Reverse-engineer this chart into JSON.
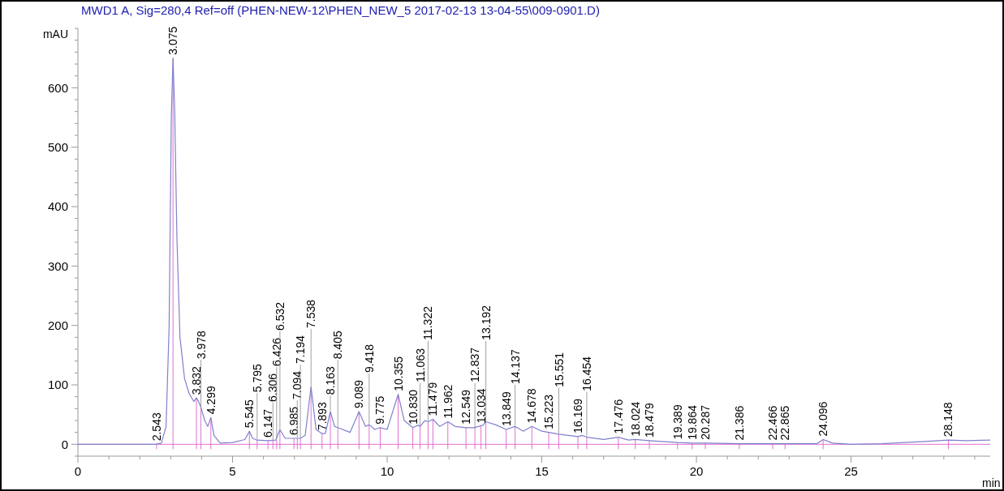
{
  "chart_data": {
    "type": "line",
    "title": "MWD1 A, Sig=280,4 Ref=off (PHEN-NEW-12\\PHEN_NEW_5 2017-02-13 13-04-55\\009-0901.D)",
    "xlabel": "min",
    "ylabel": "mAU",
    "xlim": [
      0,
      29.5
    ],
    "ylim": [
      -20,
      700
    ],
    "xticks": [
      0,
      {
        "value": 1,
        "label": null
      },
      {
        "value": 2,
        "label": null
      },
      {
        "value": 3,
        "label": null
      },
      {
        "value": 4,
        "label": null
      },
      5,
      {
        "value": 6,
        "label": null
      },
      {
        "value": 7,
        "label": null
      },
      {
        "value": 8,
        "label": null
      },
      {
        "value": 9,
        "label": null
      },
      10,
      {
        "value": 11,
        "label": null
      },
      {
        "value": 12,
        "label": null
      },
      {
        "value": 13,
        "label": null
      },
      {
        "value": 14,
        "label": null
      },
      15,
      {
        "value": 16,
        "label": null
      },
      {
        "value": 17,
        "label": null
      },
      {
        "value": 18,
        "label": null
      },
      {
        "value": 19,
        "label": null
      },
      20,
      {
        "value": 21,
        "label": null
      },
      {
        "value": 22,
        "label": null
      },
      {
        "value": 23,
        "label": null
      },
      {
        "value": 24,
        "label": null
      },
      25,
      {
        "value": 26,
        "label": null
      },
      {
        "value": 27,
        "label": null
      },
      {
        "value": 28,
        "label": null
      },
      {
        "value": 29,
        "label": null
      }
    ],
    "yticks": [
      {
        "value": -20,
        "label": null
      },
      0,
      {
        "value": 20,
        "label": null
      },
      {
        "value": 40,
        "label": null
      },
      {
        "value": 60,
        "label": null
      },
      {
        "value": 80,
        "label": null
      },
      100,
      {
        "value": 120,
        "label": null
      },
      {
        "value": 140,
        "label": null
      },
      {
        "value": 160,
        "label": null
      },
      {
        "value": 180,
        "label": null
      },
      200,
      {
        "value": 220,
        "label": null
      },
      {
        "value": 240,
        "label": null
      },
      {
        "value": 260,
        "label": null
      },
      {
        "value": 280,
        "label": null
      },
      300,
      {
        "value": 320,
        "label": null
      },
      {
        "value": 340,
        "label": null
      },
      {
        "value": 360,
        "label": null
      },
      {
        "value": 380,
        "label": null
      },
      400,
      {
        "value": 420,
        "label": null
      },
      {
        "value": 440,
        "label": null
      },
      {
        "value": 460,
        "label": null
      },
      {
        "value": 480,
        "label": null
      },
      500,
      {
        "value": 520,
        "label": null
      },
      {
        "value": 540,
        "label": null
      },
      {
        "value": 560,
        "label": null
      },
      {
        "value": 580,
        "label": null
      },
      600,
      {
        "value": 620,
        "label": null
      },
      {
        "value": 640,
        "label": null
      },
      {
        "value": 660,
        "label": null
      },
      {
        "value": 680,
        "label": null
      },
      {
        "value": 700,
        "label": null
      }
    ],
    "marker": "none",
    "line_style": "solid",
    "series": [
      {
        "color": "#8080cc",
        "x": [
          0,
          2.5,
          2.7,
          2.85,
          2.95,
          3.02,
          3.075,
          3.13,
          3.2,
          3.3,
          3.45,
          3.6,
          3.75,
          3.832,
          3.9,
          3.978,
          4.1,
          4.2,
          4.299,
          4.4,
          4.6,
          5.0,
          5.4,
          5.545,
          5.65,
          5.795,
          6.147,
          6.4,
          6.532,
          6.7,
          6.985,
          7.194,
          7.35,
          7.538,
          7.7,
          7.893,
          8.0,
          8.163,
          8.3,
          8.405,
          8.8,
          9.089,
          9.3,
          9.418,
          9.6,
          9.775,
          10.0,
          10.355,
          10.55,
          10.83,
          11.0,
          11.063,
          11.22,
          11.322,
          11.479,
          11.7,
          11.962,
          12.2,
          12.549,
          12.8,
          13.1,
          13.192,
          13.5,
          13.849,
          14.137,
          14.4,
          14.678,
          15.0,
          15.223,
          15.551,
          16.169,
          16.3,
          16.454,
          17.0,
          17.476,
          17.8,
          18.024,
          18.479,
          19.389,
          19.864,
          20.287,
          21.386,
          22.466,
          22.865,
          23.9,
          24.096,
          24.4,
          25,
          26,
          27.5,
          28.148,
          28.7,
          29.5
        ],
        "values": [
          0,
          0,
          2,
          30,
          200,
          550,
          650,
          560,
          350,
          180,
          110,
          85,
          72,
          78,
          72,
          62,
          40,
          30,
          45,
          15,
          2,
          3,
          8,
          22,
          10,
          7,
          6,
          7,
          25,
          10,
          10,
          10,
          15,
          97,
          25,
          18,
          18,
          55,
          30,
          28,
          20,
          55,
          30,
          33,
          25,
          28,
          25,
          84,
          40,
          28,
          32,
          30,
          40,
          38,
          42,
          30,
          38,
          30,
          28,
          28,
          32,
          38,
          33,
          25,
          30,
          22,
          30,
          22,
          20,
          17,
          13,
          15,
          12,
          8,
          12,
          7,
          8,
          6,
          3,
          2,
          2,
          1,
          1,
          1,
          1,
          8,
          2,
          0,
          1,
          5,
          7,
          6,
          7
        ]
      }
    ],
    "ref_lines": [
      {
        "axis": "y",
        "value": 0,
        "color": "#e070d0"
      }
    ],
    "annotations": [
      {
        "text": "2.543",
        "x": 2.543,
        "y": 0
      },
      {
        "text": "3.075",
        "x": 3.075,
        "y": 650
      },
      {
        "text": "3.832",
        "x": 3.832,
        "y": 78
      },
      {
        "text": "3.978",
        "x": 3.978,
        "y": 62
      },
      {
        "text": "4.299",
        "x": 4.299,
        "y": 45
      },
      {
        "text": "5.545",
        "x": 5.545,
        "y": 22
      },
      {
        "text": "5.795",
        "x": 5.795,
        "y": 7
      },
      {
        "text": "6.147",
        "x": 6.147,
        "y": 6
      },
      {
        "text": "6.306",
        "x": 6.306,
        "y": 6
      },
      {
        "text": "6.426",
        "x": 6.426,
        "y": 7
      },
      {
        "text": "6.532",
        "x": 6.532,
        "y": 25
      },
      {
        "text": "6.985",
        "x": 6.985,
        "y": 10
      },
      {
        "text": "7.094",
        "x": 7.094,
        "y": 10
      },
      {
        "text": "7.194",
        "x": 7.194,
        "y": 10
      },
      {
        "text": "7.538",
        "x": 7.538,
        "y": 97
      },
      {
        "text": "7.893",
        "x": 7.893,
        "y": 18
      },
      {
        "text": "8.163",
        "x": 8.163,
        "y": 55
      },
      {
        "text": "8.405",
        "x": 8.405,
        "y": 28
      },
      {
        "text": "9.089",
        "x": 9.089,
        "y": 55
      },
      {
        "text": "9.418",
        "x": 9.418,
        "y": 33
      },
      {
        "text": "9.775",
        "x": 9.775,
        "y": 28
      },
      {
        "text": "10.355",
        "x": 10.355,
        "y": 84
      },
      {
        "text": "10.830",
        "x": 10.83,
        "y": 28
      },
      {
        "text": "11.063",
        "x": 11.063,
        "y": 30
      },
      {
        "text": "11.322",
        "x": 11.322,
        "y": 38
      },
      {
        "text": "11.479",
        "x": 11.479,
        "y": 42
      },
      {
        "text": "11.962",
        "x": 11.962,
        "y": 38
      },
      {
        "text": "12.549",
        "x": 12.549,
        "y": 28
      },
      {
        "text": "12.837",
        "x": 12.837,
        "y": 28
      },
      {
        "text": "13.034",
        "x": 13.034,
        "y": 30
      },
      {
        "text": "13.192",
        "x": 13.192,
        "y": 38
      },
      {
        "text": "13.849",
        "x": 13.849,
        "y": 25
      },
      {
        "text": "14.137",
        "x": 14.137,
        "y": 30
      },
      {
        "text": "14.678",
        "x": 14.678,
        "y": 30
      },
      {
        "text": "15.223",
        "x": 15.223,
        "y": 20
      },
      {
        "text": "15.551",
        "x": 15.551,
        "y": 17
      },
      {
        "text": "16.169",
        "x": 16.169,
        "y": 13
      },
      {
        "text": "16.454",
        "x": 16.454,
        "y": 12
      },
      {
        "text": "17.476",
        "x": 17.476,
        "y": 12
      },
      {
        "text": "18.024",
        "x": 18.024,
        "y": 8
      },
      {
        "text": "18.479",
        "x": 18.479,
        "y": 6
      },
      {
        "text": "19.389",
        "x": 19.389,
        "y": 3
      },
      {
        "text": "19.864",
        "x": 19.864,
        "y": 2
      },
      {
        "text": "20.287",
        "x": 20.287,
        "y": 2
      },
      {
        "text": "21.386",
        "x": 21.386,
        "y": 1
      },
      {
        "text": "22.466",
        "x": 22.466,
        "y": 1
      },
      {
        "text": "22.865",
        "x": 22.865,
        "y": 1
      },
      {
        "text": "24.096",
        "x": 24.096,
        "y": 8
      },
      {
        "text": "28.148",
        "x": 28.148,
        "y": 7
      }
    ]
  }
}
